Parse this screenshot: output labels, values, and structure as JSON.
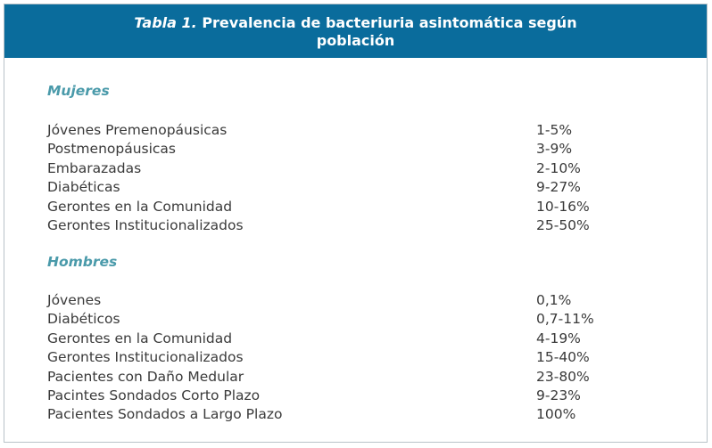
{
  "table": {
    "title_label": "Tabla 1.",
    "title_line1": "Prevalencia de bacteriuria asintomática según",
    "title_line2": "población",
    "sections": [
      {
        "heading": "Mujeres",
        "rows": [
          {
            "name": "Jóvenes Premenopáusicas",
            "value": "1-5%"
          },
          {
            "name": "Postmenopáusicas",
            "value": "3-9%"
          },
          {
            "name": "Embarazadas",
            "value": "2-10%"
          },
          {
            "name": "Diabéticas",
            "value": "9-27%"
          },
          {
            "name": "Gerontes en la Comunidad",
            "value": "10-16%"
          },
          {
            "name": "Gerontes Institucionalizados",
            "value": "25-50%"
          }
        ]
      },
      {
        "heading": "Hombres",
        "rows": [
          {
            "name": "Jóvenes",
            "value": "0,1%"
          },
          {
            "name": "Diabéticos",
            "value": "0,7-11%"
          },
          {
            "name": "Gerontes en la Comunidad",
            "value": "4-19%"
          },
          {
            "name": "Gerontes Institucionalizados",
            "value": "15-40%"
          },
          {
            "name": "Pacientes con Daño Medular",
            "value": "23-80%"
          },
          {
            "name": "Pacintes Sondados Corto Plazo",
            "value": "9-23%"
          },
          {
            "name": "Pacientes Sondados a Largo Plazo",
            "value": "100%"
          }
        ]
      }
    ]
  },
  "colors": {
    "header_bg": "#0a6c9c",
    "section_heading": "#4a9aaa",
    "body_text": "#3a3a3a",
    "border": "#b9c2c8"
  }
}
